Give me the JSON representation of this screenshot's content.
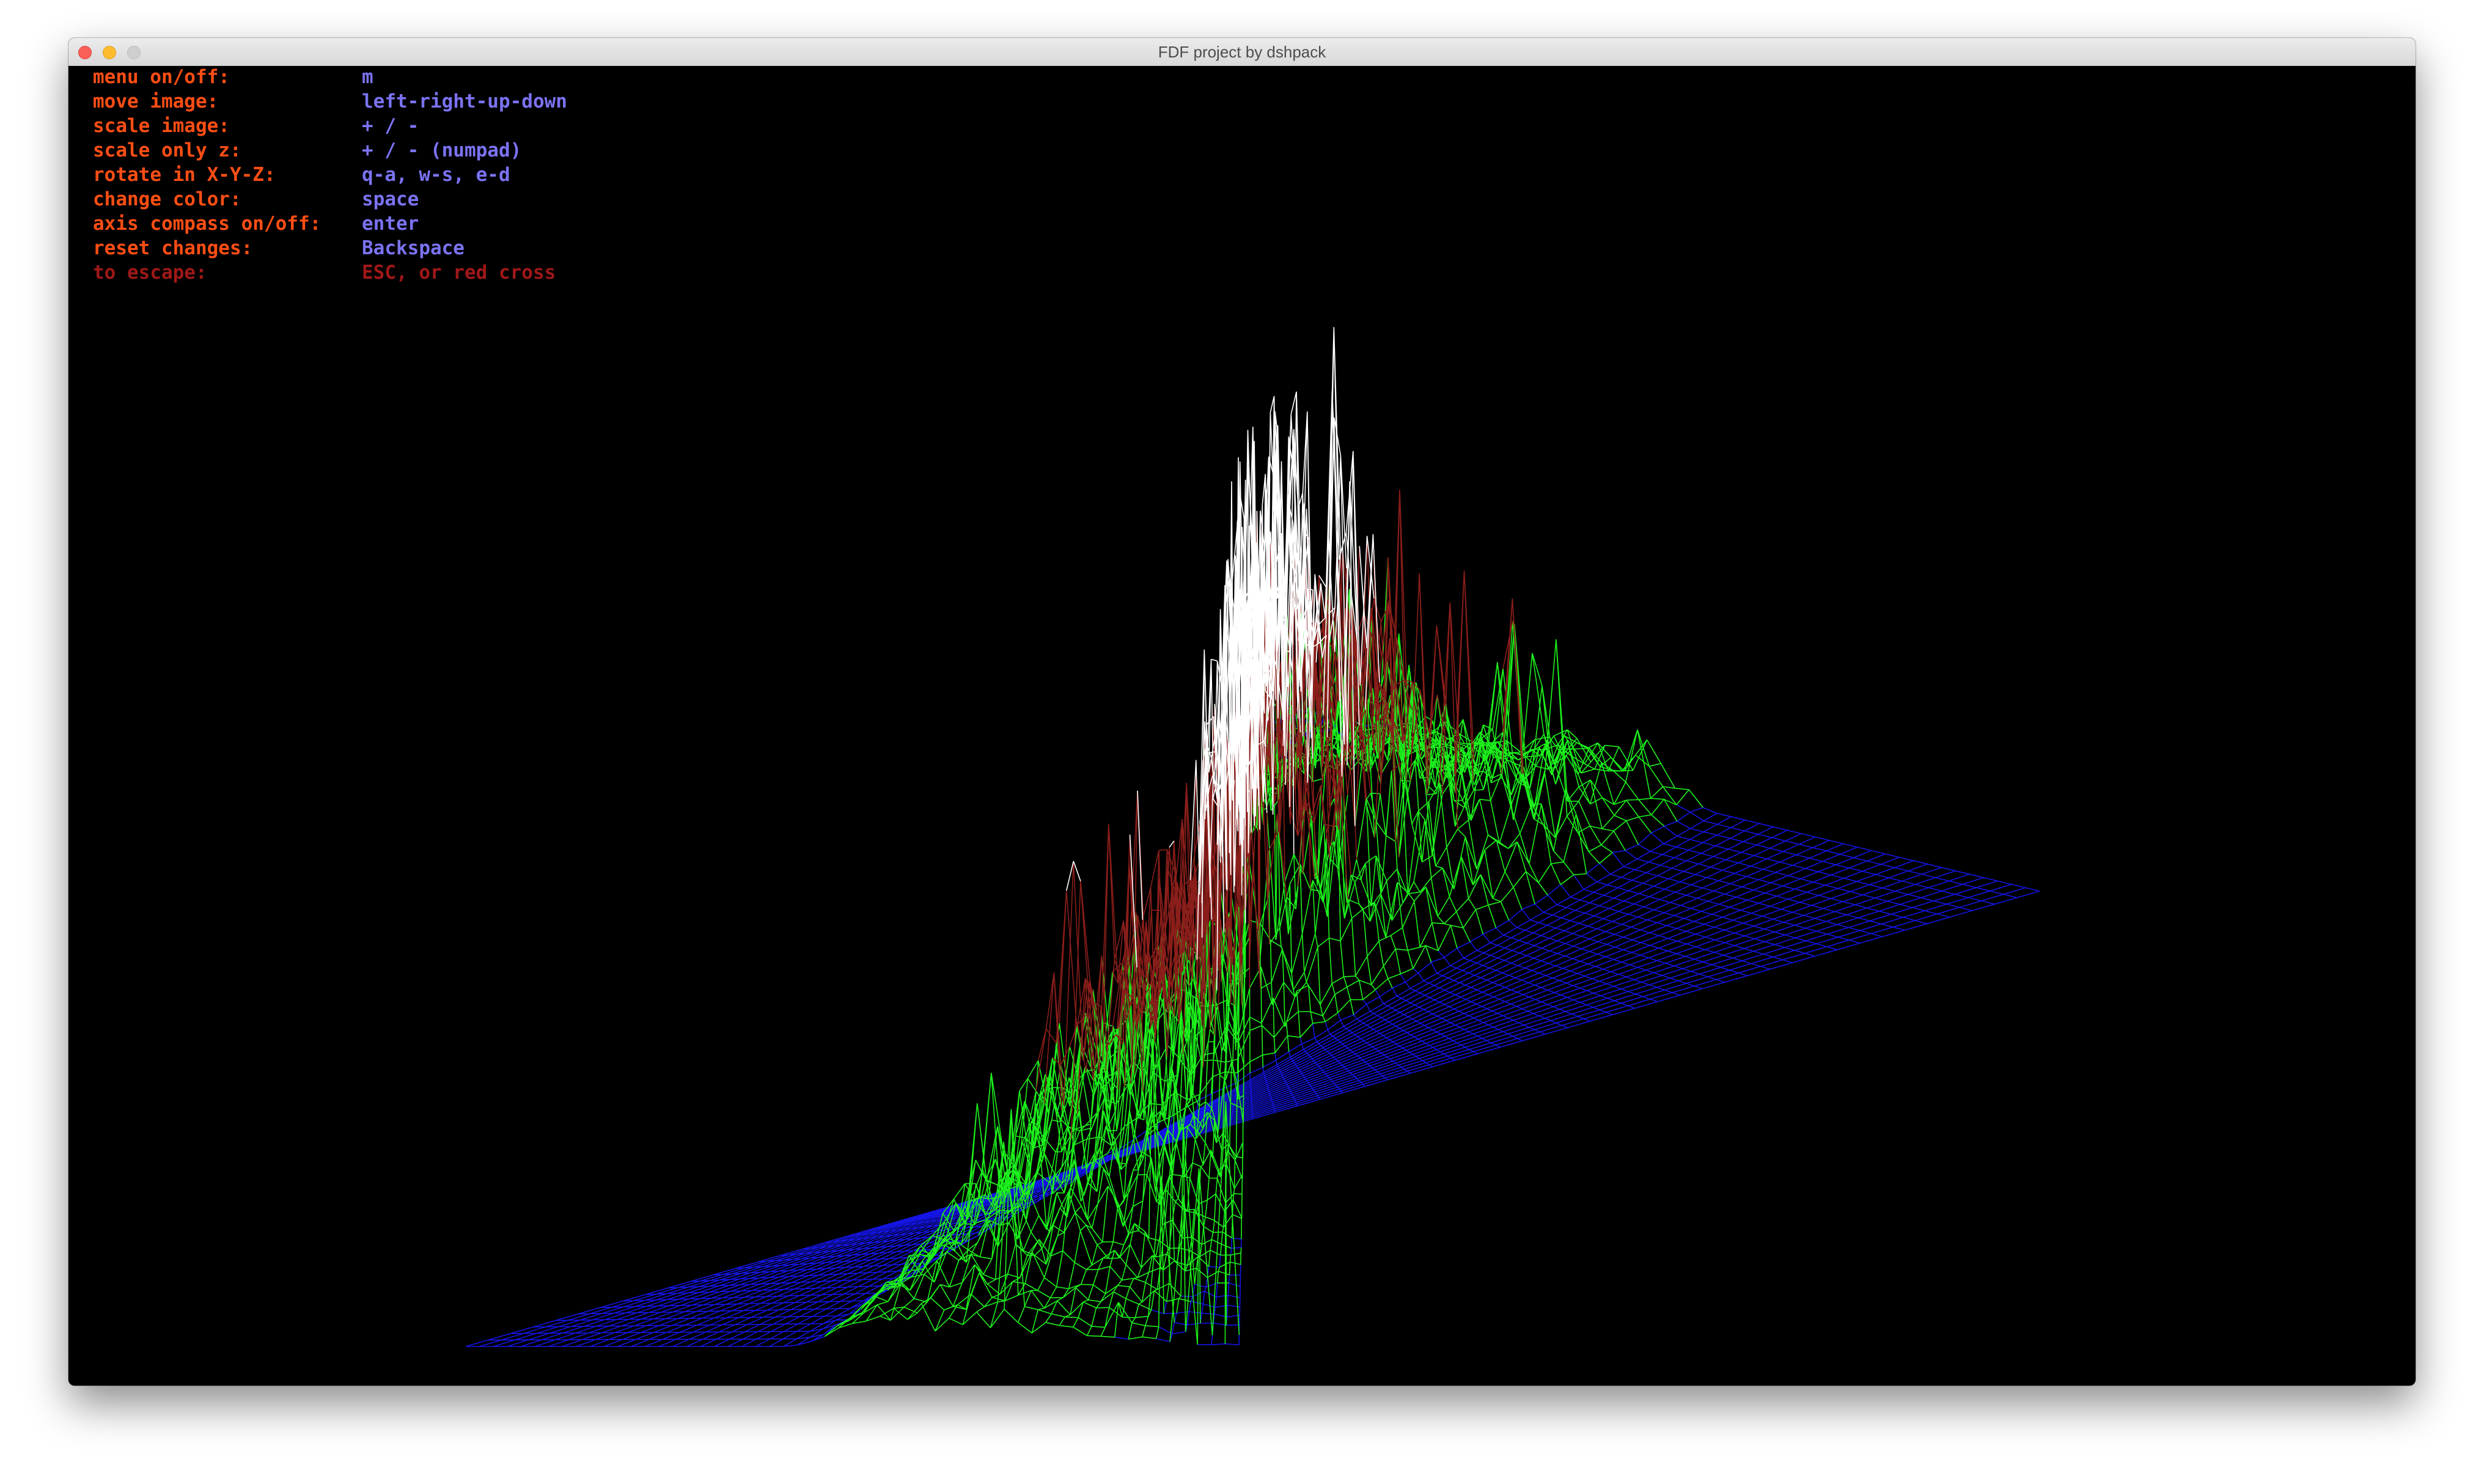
{
  "window": {
    "title": "FDF project by dshpack"
  },
  "menu": [
    {
      "key": "menu on/off:",
      "value": "m"
    },
    {
      "key": "move image:",
      "value": "left-right-up-down"
    },
    {
      "key": "scale image:",
      "value": "+ / -"
    },
    {
      "key": "scale only z:",
      "value": "+ / - (numpad)"
    },
    {
      "key": "rotate in X-Y-Z:",
      "value": "q-a, w-s, e-d"
    },
    {
      "key": "change color:",
      "value": "space"
    },
    {
      "key": "axis compass on/off:",
      "value": "enter"
    },
    {
      "key": "reset changes:",
      "value": "Backspace"
    },
    {
      "key": "to escape:",
      "value": "ESC, or red cross"
    }
  ],
  "colors": {
    "background": "#000000",
    "menu_key": "#ff4e14",
    "menu_value": "#7b73f2",
    "menu_escape": "#a01818",
    "low": "#1414e6",
    "mid": "#1cf01c",
    "high": "#8a1e1a",
    "peak": "#ffffff"
  }
}
